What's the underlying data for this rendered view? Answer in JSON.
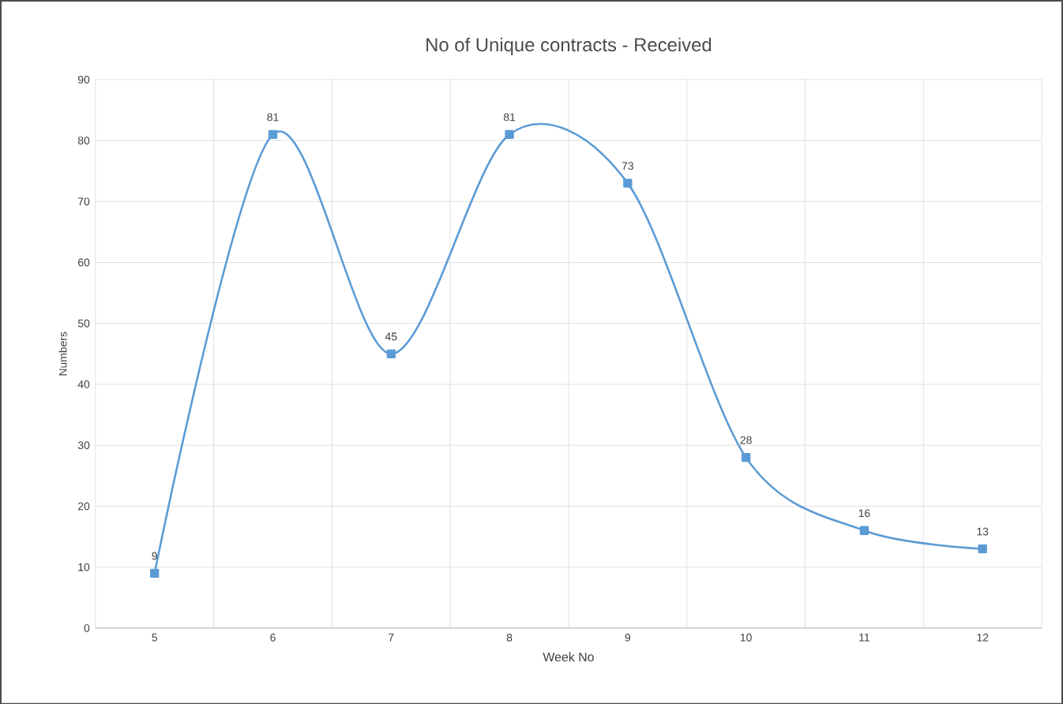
{
  "chart_data": {
    "type": "line",
    "title": "No of Unique contracts - Received",
    "xlabel": "Week No",
    "ylabel": "Numbers",
    "categories": [
      "5",
      "6",
      "7",
      "8",
      "9",
      "10",
      "11",
      "12"
    ],
    "series": [
      {
        "color": "#5b9bd5",
        "values": [
          9,
          81,
          45,
          81,
          73,
          28,
          16,
          13
        ]
      }
    ],
    "ylim": [
      0,
      90
    ],
    "yticks": [
      0,
      10,
      20,
      30,
      40,
      50,
      60,
      70,
      80,
      90
    ],
    "grid": true,
    "marker": "square",
    "line_style": "solid",
    "data_labels": true
  }
}
